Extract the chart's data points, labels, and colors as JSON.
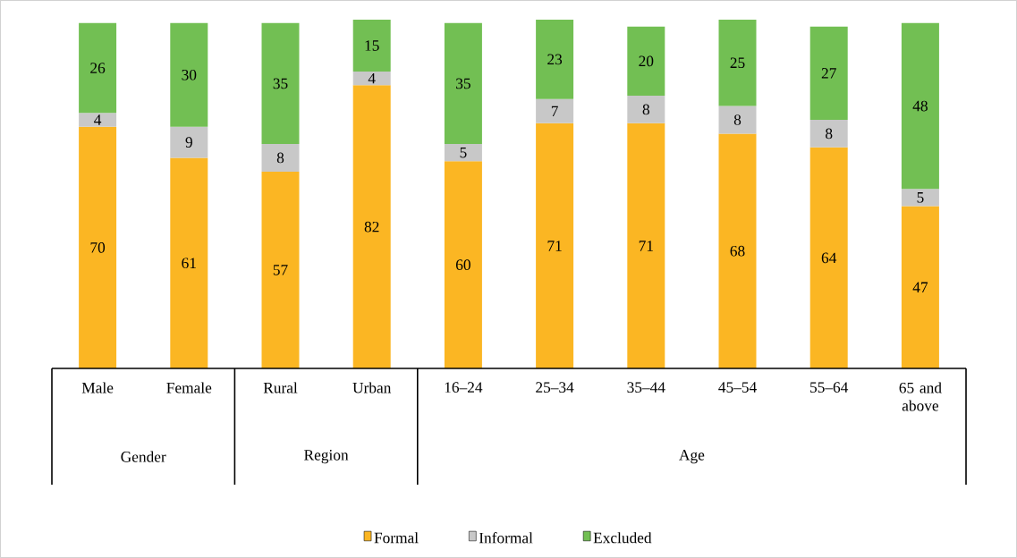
{
  "chart_data": {
    "type": "bar",
    "stacked": true,
    "categories": [
      "Male",
      "Female",
      "Rural",
      "Urban",
      "16–24",
      "25–34",
      "35–44",
      "45–54",
      "55–64",
      "65 and above"
    ],
    "series": [
      {
        "name": "Formal",
        "color": "#fbb623",
        "values": [
          70,
          61,
          57,
          82,
          60,
          71,
          71,
          68,
          64,
          47
        ]
      },
      {
        "name": "Informal",
        "color": "#c8c8c8",
        "values": [
          4,
          9,
          8,
          4,
          5,
          7,
          8,
          8,
          8,
          5
        ]
      },
      {
        "name": "Excluded",
        "color": "#72bf53",
        "values": [
          26,
          30,
          35,
          15,
          35,
          23,
          20,
          25,
          27,
          48
        ]
      }
    ],
    "ylim": [
      0,
      101
    ],
    "data_labels": true,
    "legend": "bottom",
    "tick_labels": "x",
    "annotations": [
      "Gender",
      "Region",
      "Age"
    ]
  }
}
